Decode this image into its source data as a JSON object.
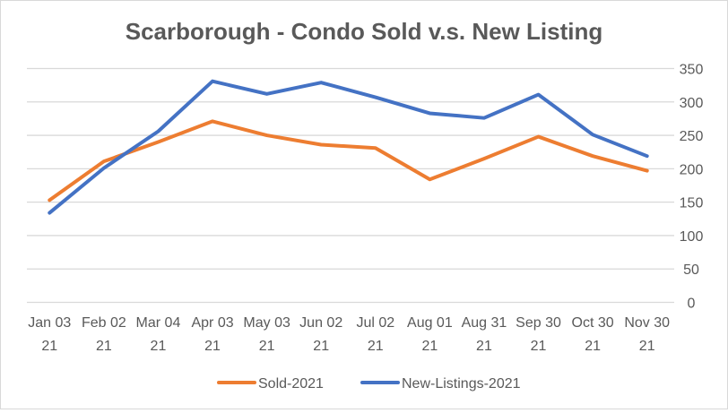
{
  "chart_data": {
    "type": "line",
    "title": "Scarborough - Condo Sold v.s. New Listing",
    "xlabel": "",
    "ylabel": "",
    "categories": [
      [
        "Jan 03",
        "21"
      ],
      [
        "Feb 02",
        "21"
      ],
      [
        "Mar 04",
        "21"
      ],
      [
        "Apr 03",
        "21"
      ],
      [
        "May 03",
        "21"
      ],
      [
        "Jun 02",
        "21"
      ],
      [
        "Jul 02",
        "21"
      ],
      [
        "Aug 01",
        "21"
      ],
      [
        "Aug 31",
        "21"
      ],
      [
        "Sep 30",
        "21"
      ],
      [
        "Oct 30",
        "21"
      ],
      [
        "Nov 30",
        "21"
      ]
    ],
    "ylim": [
      0,
      350
    ],
    "yticks": [
      0,
      50,
      100,
      150,
      200,
      250,
      300,
      350
    ],
    "y_axis_side": "right",
    "grid": true,
    "legend_position": "bottom",
    "series": [
      {
        "name": "Sold-2021",
        "color": "#ED7D31",
        "values": [
          153,
          211,
          240,
          271,
          250,
          236,
          231,
          184,
          215,
          248,
          219,
          197
        ]
      },
      {
        "name": "New-Listings-2021",
        "color": "#4472C4",
        "values": [
          134,
          201,
          256,
          331,
          312,
          329,
          307,
          283,
          276,
          311,
          251,
          219
        ]
      }
    ]
  }
}
